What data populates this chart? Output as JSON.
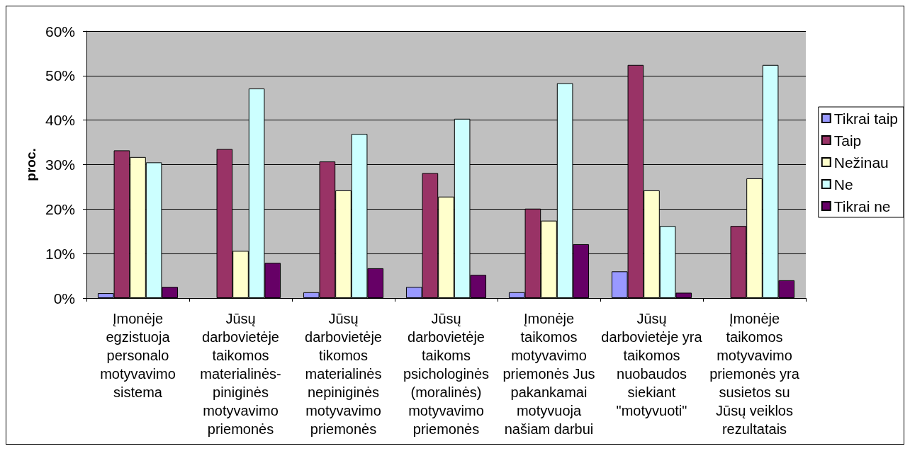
{
  "chart_data": {
    "type": "bar",
    "categories": [
      "Įmonėje egzistuoja personalo motyvavimo sistema",
      "Jūsų darbovietėje taikomos materialinės-piniginės motyvavimo priemonės",
      "Jūsų darbovietėje tikomos materialinės nepiniginės motyvavimo priemonės",
      "Jūsų darbovietėje taikoms psichologinės (moralinės) motyvavimo priemonės",
      "Įmonėje taikomos motyvavimo priemonės Jus pakankamai motyvuoja našiam darbui",
      "Jūsų darbovietėje yra taikomos nuobaudos siekiant \"motyvuoti\"",
      "Įmonėje taikomos motyvavimo priemonės yra susietos su Jūsų veiklos rezultatais"
    ],
    "series": [
      {
        "name": "Tikrai taip",
        "color": "#9999ff",
        "values": [
          1.1,
          null,
          1.3,
          2.5,
          1.3,
          6.0,
          null
        ]
      },
      {
        "name": "Taip",
        "color": "#993366",
        "values": [
          33.2,
          33.5,
          30.7,
          28.1,
          20.1,
          52.4,
          16.2
        ]
      },
      {
        "name": "Nežinau",
        "color": "#ffffcc",
        "values": [
          31.7,
          10.6,
          24.2,
          22.8,
          17.4,
          24.2,
          26.9
        ]
      },
      {
        "name": "Ne",
        "color": "#ccffff",
        "values": [
          30.5,
          47.1,
          36.9,
          40.3,
          48.3,
          16.2,
          52.4
        ]
      },
      {
        "name": "Tikrai ne",
        "color": "#660066",
        "values": [
          2.5,
          7.9,
          6.7,
          5.2,
          12.1,
          1.2,
          4.0
        ]
      }
    ],
    "ylabel": "proc.",
    "ylim": [
      0,
      60
    ],
    "yticks": [
      {
        "value": 0,
        "label": "0%"
      },
      {
        "value": 10,
        "label": "10%"
      },
      {
        "value": 20,
        "label": "20%"
      },
      {
        "value": 30,
        "label": "30%"
      },
      {
        "value": 40,
        "label": "40%"
      },
      {
        "value": 50,
        "label": "50%"
      },
      {
        "value": 60,
        "label": "60%"
      }
    ],
    "grid": "y",
    "legend": "right"
  }
}
